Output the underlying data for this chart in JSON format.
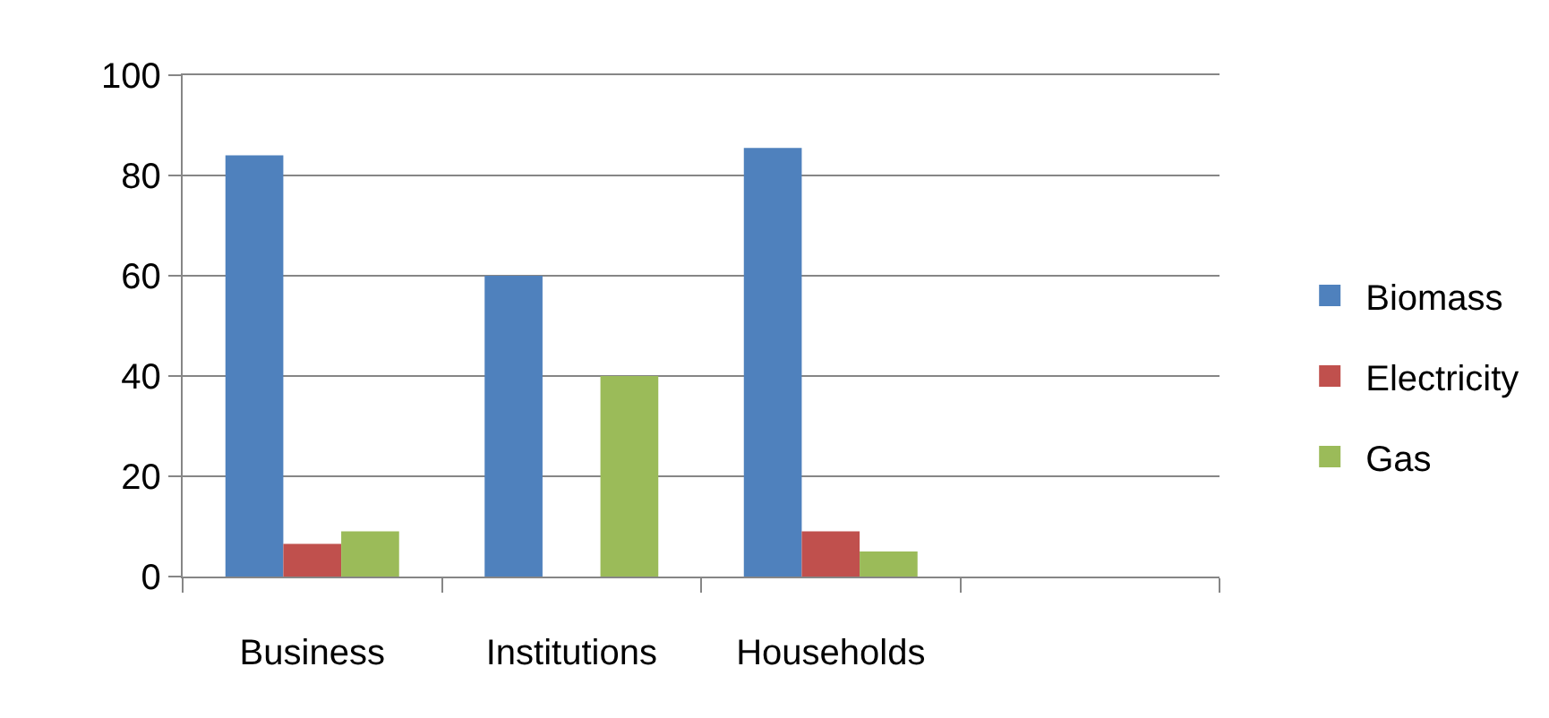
{
  "chart_data": {
    "type": "bar",
    "categories": [
      "Business",
      "Institutions",
      "Households",
      null
    ],
    "series": [
      {
        "name": "Biomass",
        "color": "#4f81bd",
        "values": [
          84,
          60,
          85.5,
          null
        ]
      },
      {
        "name": "Electricity",
        "color": "#c0504d",
        "values": [
          6.5,
          0,
          9,
          null
        ]
      },
      {
        "name": "Gas",
        "color": "#9bbb59",
        "values": [
          9,
          40,
          5,
          null
        ]
      }
    ],
    "ylim": [
      0,
      100
    ],
    "yticks": [
      0,
      20,
      40,
      60,
      80,
      100
    ],
    "grid": "y",
    "legend": "right"
  }
}
